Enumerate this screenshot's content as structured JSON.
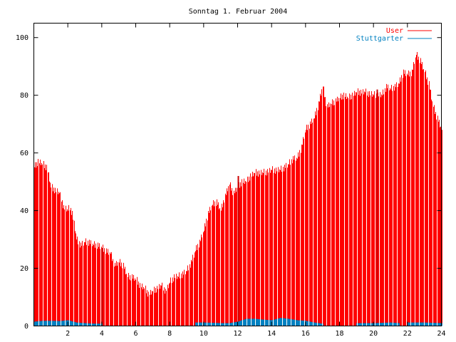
{
  "chart_data": {
    "type": "bar",
    "title": "Sonntag 1. Februar 2004",
    "xlabel": "",
    "ylabel": "",
    "xlim": [
      0,
      24
    ],
    "ylim": [
      0,
      105
    ],
    "xticks": [
      2,
      4,
      6,
      8,
      10,
      12,
      14,
      16,
      18,
      20,
      22,
      24
    ],
    "yticks": [
      0,
      20,
      40,
      60,
      80,
      100
    ],
    "grid": false,
    "legend_position": "top-right",
    "series": [
      {
        "name": "User",
        "color": "#ff0000",
        "knots": [
          [
            0,
            55
          ],
          [
            0.25,
            57
          ],
          [
            0.5,
            56
          ],
          [
            0.75,
            55
          ],
          [
            1,
            48
          ],
          [
            1.25,
            47
          ],
          [
            1.5,
            46
          ],
          [
            1.75,
            41
          ],
          [
            2,
            40
          ],
          [
            2.1,
            41
          ],
          [
            2.25,
            39
          ],
          [
            2.5,
            30
          ],
          [
            2.75,
            28
          ],
          [
            3,
            29
          ],
          [
            3.25,
            29
          ],
          [
            3.5,
            28
          ],
          [
            3.75,
            28
          ],
          [
            4,
            27
          ],
          [
            4.25,
            26
          ],
          [
            4.5,
            25
          ],
          [
            4.75,
            21
          ],
          [
            5,
            22
          ],
          [
            5.25,
            21
          ],
          [
            5.5,
            17
          ],
          [
            5.75,
            17
          ],
          [
            6,
            16
          ],
          [
            6.25,
            14
          ],
          [
            6.5,
            13
          ],
          [
            6.75,
            11
          ],
          [
            7,
            12
          ],
          [
            7.25,
            13
          ],
          [
            7.5,
            14
          ],
          [
            7.75,
            12
          ],
          [
            8,
            15
          ],
          [
            8.25,
            17
          ],
          [
            8.5,
            17
          ],
          [
            8.75,
            18
          ],
          [
            9,
            19
          ],
          [
            9.25,
            22
          ],
          [
            9.5,
            26
          ],
          [
            9.75,
            29
          ],
          [
            10,
            33
          ],
          [
            10.25,
            39
          ],
          [
            10.5,
            42
          ],
          [
            10.75,
            43
          ],
          [
            11,
            40
          ],
          [
            11.25,
            45
          ],
          [
            11.5,
            49
          ],
          [
            11.75,
            46
          ],
          [
            12,
            48
          ],
          [
            12.25,
            50
          ],
          [
            12.5,
            50
          ],
          [
            12.75,
            52
          ],
          [
            13,
            53
          ],
          [
            13.5,
            53
          ],
          [
            14,
            54
          ],
          [
            14.5,
            54
          ],
          [
            15,
            56
          ],
          [
            15.25,
            58
          ],
          [
            15.5,
            58
          ],
          [
            15.75,
            62
          ],
          [
            16,
            68
          ],
          [
            16.5,
            72
          ],
          [
            16.75,
            77
          ],
          [
            17,
            83
          ],
          [
            17.25,
            76
          ],
          [
            17.5,
            77
          ],
          [
            17.75,
            78
          ],
          [
            18,
            79
          ],
          [
            18.25,
            80
          ],
          [
            18.5,
            79
          ],
          [
            18.75,
            80
          ],
          [
            19,
            81
          ],
          [
            19.5,
            81
          ],
          [
            20,
            80
          ],
          [
            20.5,
            80
          ],
          [
            20.75,
            83
          ],
          [
            21,
            82
          ],
          [
            21.25,
            83
          ],
          [
            21.5,
            84
          ],
          [
            21.75,
            88
          ],
          [
            22,
            87
          ],
          [
            22.25,
            88
          ],
          [
            22.5,
            94
          ],
          [
            22.75,
            92
          ],
          [
            23,
            88
          ],
          [
            23.25,
            84
          ],
          [
            23.5,
            76
          ],
          [
            23.75,
            72
          ],
          [
            24,
            68
          ]
        ],
        "highlights": [
          [
            4,
            27
          ],
          [
            12,
            52
          ],
          [
            20.2,
            82
          ]
        ]
      },
      {
        "name": "Stuttgarter",
        "color": "#0080c0",
        "segments": [
          {
            "knots": [
              [
                0,
                1.5
              ],
              [
                0.5,
                1.8
              ],
              [
                1,
                1.8
              ],
              [
                1.5,
                1.7
              ],
              [
                2,
                2.0
              ],
              [
                2.5,
                1.2
              ],
              [
                3,
                1.0
              ],
              [
                3.5,
                0.8
              ],
              [
                4,
                0.8
              ]
            ]
          },
          {
            "knots": [
              [
                9.5,
                1.2
              ],
              [
                10,
                1.2
              ],
              [
                11,
                1.0
              ],
              [
                11.5,
                1.0
              ],
              [
                12,
                1.5
              ],
              [
                12.5,
                2.5
              ],
              [
                13,
                2.5
              ],
              [
                13.5,
                2.2
              ],
              [
                14,
                2.0
              ],
              [
                14.5,
                2.8
              ],
              [
                15,
                2.5
              ],
              [
                15.5,
                2.0
              ],
              [
                16,
                1.8
              ],
              [
                16.5,
                1.2
              ],
              [
                17,
                0.8
              ]
            ]
          },
          {
            "knots": [
              [
                19,
                1.0
              ],
              [
                20,
                1.0
              ],
              [
                21,
                1.2
              ],
              [
                21.5,
                1.0
              ]
            ]
          },
          {
            "knots": [
              [
                22,
                1.2
              ],
              [
                23,
                1.2
              ],
              [
                24,
                1.0
              ]
            ]
          }
        ]
      }
    ]
  }
}
